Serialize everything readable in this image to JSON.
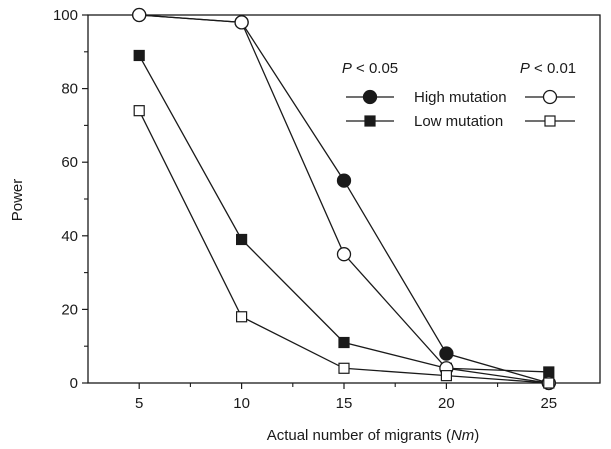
{
  "chart_data": {
    "type": "line",
    "xlabel": "Actual number of migrants (Nm)",
    "xlabel_parts": [
      "Actual number of migrants (",
      "Nm",
      ")"
    ],
    "ylabel": "Power",
    "x": [
      5,
      10,
      15,
      20,
      25
    ],
    "xlim": [
      2.5,
      27.5
    ],
    "ylim": [
      0,
      100
    ],
    "xticks": [
      5,
      10,
      15,
      20,
      25
    ],
    "yticks": [
      0,
      20,
      40,
      60,
      80,
      100
    ],
    "grid": false,
    "legend": {
      "placement": "top-right",
      "column_headers": [
        {
          "italic": "P",
          "text": " < 0.05"
        },
        {
          "italic": "P",
          "text": " < 0.01"
        }
      ],
      "rows": [
        "High mutation",
        "Low mutation"
      ]
    },
    "series": [
      {
        "id": "high-005",
        "legend_row": "High mutation",
        "threshold": "P < 0.05",
        "marker": "circle",
        "filled": true,
        "values": [
          100,
          98,
          55,
          8,
          0
        ]
      },
      {
        "id": "high-001",
        "legend_row": "High mutation",
        "threshold": "P < 0.01",
        "marker": "circle",
        "filled": false,
        "values": [
          100,
          98,
          35,
          4,
          0
        ]
      },
      {
        "id": "low-005",
        "legend_row": "Low mutation",
        "threshold": "P < 0.05",
        "marker": "square",
        "filled": true,
        "values": [
          89,
          39,
          11,
          4,
          3
        ]
      },
      {
        "id": "low-001",
        "legend_row": "Low mutation",
        "threshold": "P < 0.01",
        "marker": "square",
        "filled": false,
        "values": [
          74,
          18,
          4,
          2,
          0
        ]
      }
    ],
    "colors": {
      "ink": "#1a1a1a",
      "background": "#ffffff"
    }
  }
}
